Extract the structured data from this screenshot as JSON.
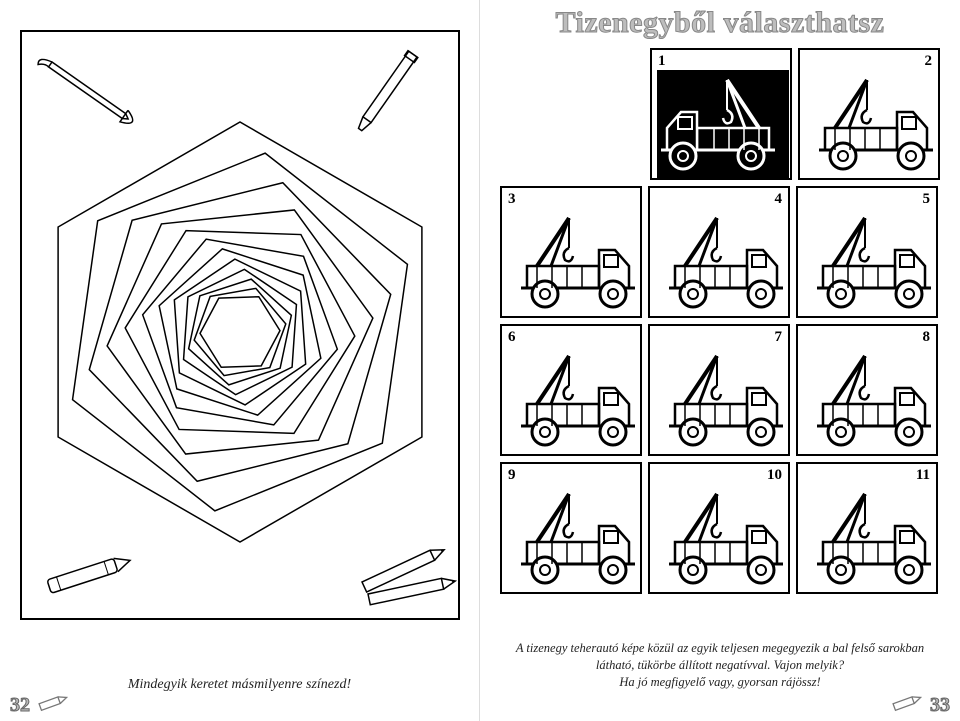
{
  "left_page": {
    "caption": "Mindegyik keretet másmilyenre színezd!",
    "page_number": "32",
    "mandala": {
      "layers": 12,
      "rotation_step_deg": 8,
      "scale_step": 0.86,
      "stroke": "#000000",
      "stroke_width": 1.5,
      "background": "#ffffff"
    },
    "corner_tools": [
      "paintbrush",
      "marker",
      "crayon",
      "pencils"
    ]
  },
  "right_page": {
    "title": "Tizenegyből választhatsz",
    "page_number": "33",
    "grid": {
      "rows": 4,
      "cols": 3,
      "cells": [
        {
          "n": "1",
          "num_pos": "left",
          "variant": "ref-neg"
        },
        {
          "n": "2",
          "num_pos": "right",
          "variant": "a"
        },
        {
          "n": "3",
          "num_pos": "left",
          "variant": "b"
        },
        {
          "n": "4",
          "num_pos": "right",
          "variant": "c"
        },
        {
          "n": "5",
          "num_pos": "right",
          "variant": "d"
        },
        {
          "n": "6",
          "num_pos": "left",
          "variant": "e"
        },
        {
          "n": "7",
          "num_pos": "right",
          "variant": "f"
        },
        {
          "n": "8",
          "num_pos": "right",
          "variant": "g"
        },
        {
          "n": "9",
          "num_pos": "left",
          "variant": "h"
        },
        {
          "n": "10",
          "num_pos": "right",
          "variant": "i"
        },
        {
          "n": "11",
          "num_pos": "right",
          "variant": "j"
        }
      ]
    },
    "caption_lines": [
      "A tizenegy teherautó képe közül az egyik teljesen megegyezik a bal felső sarokban",
      "látható, tükörbe állított negatívval. Vajon melyik?",
      "Ha jó megfigyelő vagy, gyorsan rájössz!"
    ]
  },
  "colors": {
    "page_bg": "#ffffff",
    "stroke": "#000000",
    "title_fill": "#bdbdbd",
    "title_stroke": "#888888",
    "text": "#222222"
  }
}
